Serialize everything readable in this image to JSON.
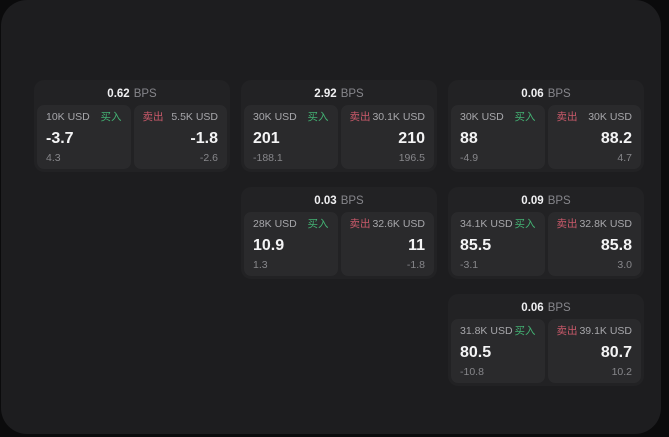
{
  "app": {
    "backdrop_color": "#0b0b0c",
    "panel_color": "#1d1d1f",
    "card_color": "#222224",
    "tile_color": "#2a2a2c"
  },
  "colors": {
    "buy_accent": "#43b374",
    "sell_accent": "#c9596a",
    "value_text": "#f4f4f5",
    "muted_text": "#87878b"
  },
  "cards": [
    {
      "bps": "0.62",
      "bps_unit": "BPS",
      "buy": {
        "amount": "10K USD",
        "label": "买入",
        "value": "-3.7",
        "sub": "4.3"
      },
      "sell": {
        "label": "卖出",
        "amount": "5.5K USD",
        "value": "-1.8",
        "sub": "-2.6"
      }
    },
    {
      "bps": "2.92",
      "bps_unit": "BPS",
      "buy": {
        "amount": "30K USD",
        "label": "买入",
        "value": "201",
        "sub": "-188.1"
      },
      "sell": {
        "label": "卖出",
        "amount": "30.1K USD",
        "value": "210",
        "sub": "196.5"
      }
    },
    {
      "bps": "0.06",
      "bps_unit": "BPS",
      "buy": {
        "amount": "30K USD",
        "label": "买入",
        "value": "88",
        "sub": "-4.9"
      },
      "sell": {
        "label": "卖出",
        "amount": "30K USD",
        "value": "88.2",
        "sub": "4.7"
      }
    },
    {
      "bps": "0.03",
      "bps_unit": "BPS",
      "buy": {
        "amount": "28K USD",
        "label": "买入",
        "value": "10.9",
        "sub": "1.3"
      },
      "sell": {
        "label": "卖出",
        "amount": "32.6K USD",
        "value": "11",
        "sub": "-1.8"
      }
    },
    {
      "bps": "0.09",
      "bps_unit": "BPS",
      "buy": {
        "amount": "34.1K USD",
        "label": "买入",
        "value": "85.5",
        "sub": "-3.1"
      },
      "sell": {
        "label": "卖出",
        "amount": "32.8K USD",
        "value": "85.8",
        "sub": "3.0"
      }
    },
    {
      "bps": "0.06",
      "bps_unit": "BPS",
      "buy": {
        "amount": "31.8K USD",
        "label": "买入",
        "value": "80.5",
        "sub": "-10.8"
      },
      "sell": {
        "label": "卖出",
        "amount": "39.1K USD",
        "value": "80.7",
        "sub": "10.2"
      }
    }
  ]
}
